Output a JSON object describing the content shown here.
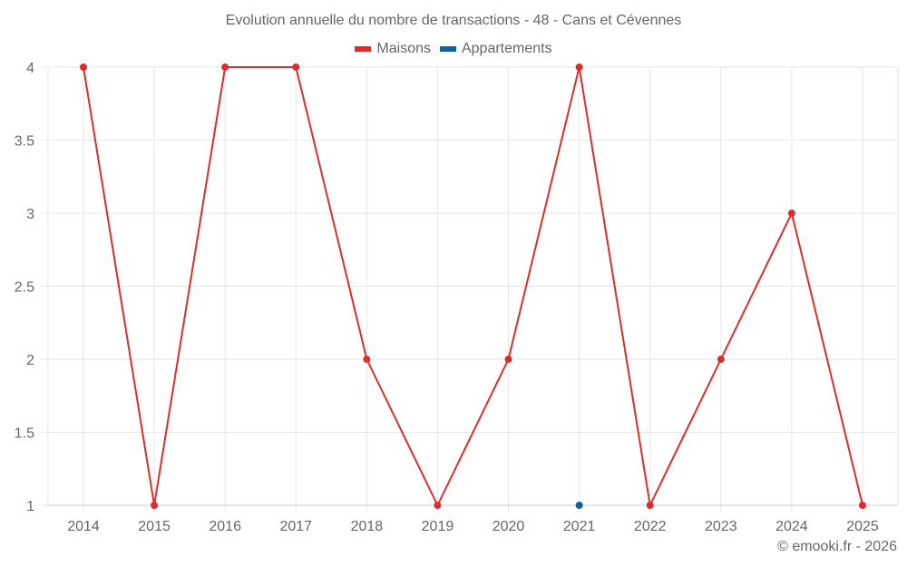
{
  "chart": {
    "title": "Evolution annuelle du nombre de transactions - 48 - Cans et Cévennes",
    "credit": "© emooki.fr - 2026",
    "legend": [
      {
        "label": "Maisons",
        "color": "#dd2c2c"
      },
      {
        "label": "Appartements",
        "color": "#0f639d"
      }
    ]
  },
  "chart_data": {
    "type": "line",
    "title": "Evolution annuelle du nombre de transactions - 48 - Cans et Cévennes",
    "xlabel": "",
    "ylabel": "",
    "x": [
      2014,
      2015,
      2016,
      2017,
      2018,
      2019,
      2020,
      2021,
      2022,
      2023,
      2024,
      2025
    ],
    "series": [
      {
        "name": "Maisons",
        "color": "#dd2c2c",
        "values": [
          4,
          1,
          4,
          4,
          2,
          1,
          2,
          4,
          1,
          2,
          3,
          1
        ]
      },
      {
        "name": "Appartements",
        "color": "#0f639d",
        "values": [
          null,
          null,
          null,
          null,
          null,
          null,
          null,
          1,
          null,
          null,
          null,
          null
        ]
      }
    ],
    "yticks": [
      "1",
      "1.5",
      "2",
      "2.5",
      "3",
      "3.5",
      "4"
    ],
    "ylim": [
      1,
      4
    ],
    "grid": true,
    "legend_position": "top"
  }
}
